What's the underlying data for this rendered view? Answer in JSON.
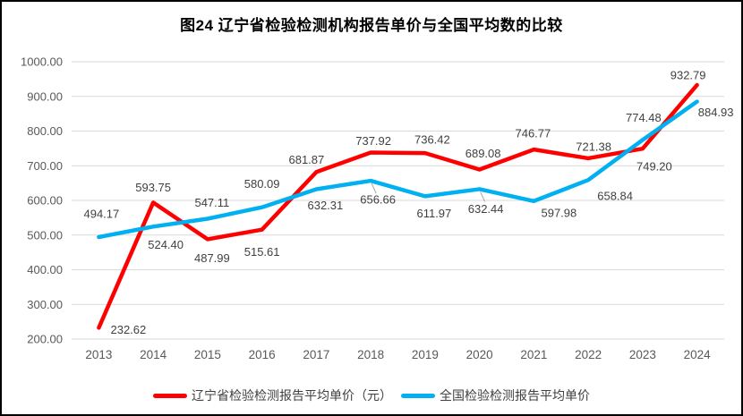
{
  "chart_data": {
    "type": "line",
    "title": "图24 辽宁省检验检测机构报告单价与全国平均数的比较",
    "categories": [
      "2013",
      "2014",
      "2015",
      "2016",
      "2017",
      "2018",
      "2019",
      "2020",
      "2021",
      "2022",
      "2023",
      "2024"
    ],
    "ylim": [
      200,
      1000
    ],
    "y_ticks": [
      200,
      300,
      400,
      500,
      600,
      700,
      800,
      900,
      1000
    ],
    "y_tick_labels": [
      "200.00",
      "300.00",
      "400.00",
      "500.00",
      "600.00",
      "700.00",
      "800.00",
      "900.00",
      "1000.00"
    ],
    "grid": true,
    "legend_position": "bottom",
    "colors": {
      "grid": "#D9D9D9",
      "axis_text": "#595959",
      "label_text": "#404040",
      "leader": "#A6A6A6",
      "frame_border": "#000000"
    },
    "series": [
      {
        "name": "辽宁省检验检测报告平均单价（元）",
        "color": "#FF0000",
        "values": [
          232.62,
          593.75,
          487.99,
          515.61,
          681.87,
          737.92,
          736.42,
          689.08,
          746.77,
          721.38,
          749.2,
          932.79
        ],
        "labels": [
          "232.62",
          "593.75",
          "487.99",
          "515.61",
          "681.87",
          "737.92",
          "736.42",
          "689.08",
          "746.77",
          "721.38",
          "749.20",
          "932.79"
        ],
        "label_offsets": [
          [
            33,
            2
          ],
          [
            0,
            -17
          ],
          [
            5,
            21
          ],
          [
            0,
            25
          ],
          [
            -11,
            -14
          ],
          [
            3,
            -13
          ],
          [
            8,
            -15
          ],
          [
            4,
            -18
          ],
          [
            -1,
            -18
          ],
          [
            6,
            -13
          ],
          [
            13,
            20
          ],
          [
            -10,
            -11
          ]
        ],
        "leader_indices": []
      },
      {
        "name": "全国检验检测报告平均单价",
        "color": "#00B0F0",
        "values": [
          494.17,
          524.4,
          547.11,
          580.09,
          632.31,
          656.66,
          611.97,
          632.44,
          597.98,
          658.84,
          774.48,
          884.93
        ],
        "labels": [
          "494.17",
          "524.40",
          "547.11",
          "580.09",
          "632.31",
          "656.66",
          "611.97",
          "632.44",
          "597.98",
          "658.84",
          "774.48",
          "884.93"
        ],
        "label_offsets": [
          [
            3,
            -26
          ],
          [
            14,
            20
          ],
          [
            5,
            -18
          ],
          [
            0,
            -26
          ],
          [
            10,
            18
          ],
          [
            8,
            21
          ],
          [
            10,
            19
          ],
          [
            7,
            22
          ],
          [
            28,
            13
          ],
          [
            30,
            18
          ],
          [
            1,
            -25
          ],
          [
            21,
            12
          ]
        ],
        "leader_indices": [
          5,
          7
        ]
      }
    ]
  }
}
